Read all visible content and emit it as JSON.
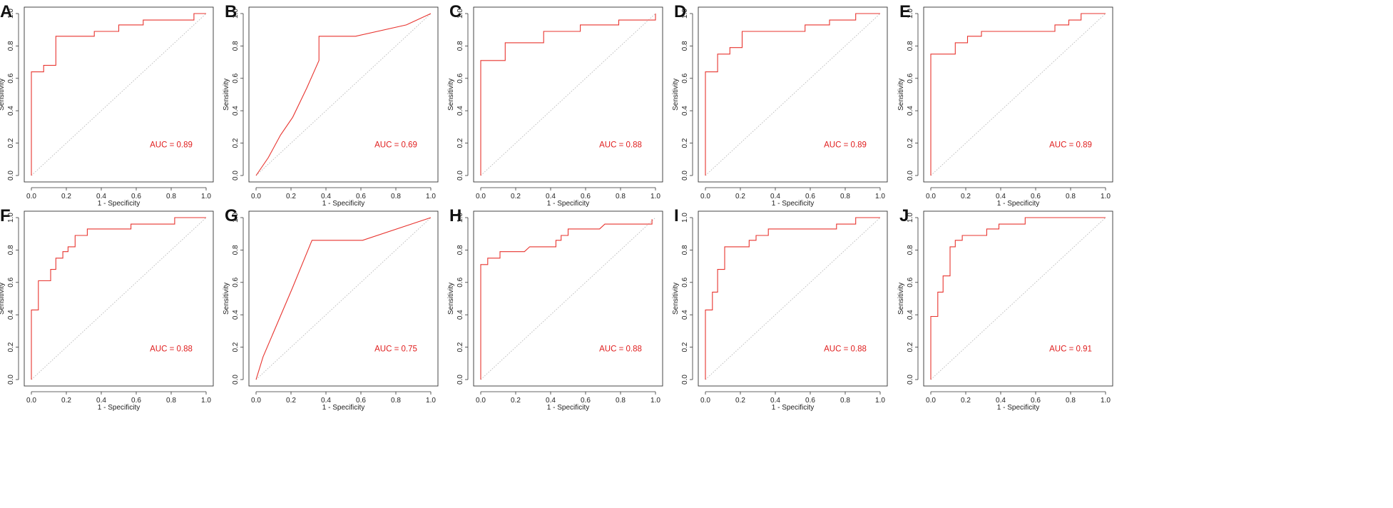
{
  "colors": {
    "roc": "#e8342f",
    "auc_text": "#e01e1e",
    "diagonal": "#b9b9b9",
    "axis": "#333333",
    "frame": "#333333"
  },
  "chart_data": [
    {
      "panel": "A",
      "type": "line",
      "xlabel": "1 - Specificity",
      "ylabel": "Sensitivity",
      "xlim": [
        0,
        1
      ],
      "ylim": [
        0,
        1
      ],
      "ticks": [
        "0.0",
        "0.2",
        "0.4",
        "0.6",
        "0.8",
        "1.0"
      ],
      "auc_label": "AUC = 0.89",
      "x": [
        0,
        0,
        0.07,
        0.07,
        0.14,
        0.14,
        0.36,
        0.36,
        0.5,
        0.5,
        0.64,
        0.64,
        0.93,
        0.93,
        1
      ],
      "y": [
        0,
        0.64,
        0.64,
        0.68,
        0.68,
        0.86,
        0.86,
        0.89,
        0.89,
        0.93,
        0.93,
        0.96,
        0.96,
        1,
        1
      ]
    },
    {
      "panel": "B",
      "type": "line",
      "xlabel": "1 - Specificity",
      "ylabel": "Sensitivity",
      "xlim": [
        0,
        1
      ],
      "ylim": [
        0,
        1
      ],
      "ticks": [
        "0.0",
        "0.2",
        "0.4",
        "0.6",
        "0.8",
        "1.0"
      ],
      "auc_label": "AUC = 0.69",
      "x": [
        0,
        0.07,
        0.14,
        0.21,
        0.29,
        0.36,
        0.36,
        0.57,
        0.86,
        1
      ],
      "y": [
        0,
        0.11,
        0.25,
        0.36,
        0.54,
        0.71,
        0.86,
        0.86,
        0.93,
        1
      ]
    },
    {
      "panel": "C",
      "type": "line",
      "xlabel": "1 - Specificity",
      "ylabel": "Sensitivity",
      "xlim": [
        0,
        1
      ],
      "ylim": [
        0,
        1
      ],
      "ticks": [
        "0.0",
        "0.2",
        "0.4",
        "0.6",
        "0.8",
        "1.0"
      ],
      "auc_label": "AUC = 0.88",
      "x": [
        0,
        0,
        0.14,
        0.14,
        0.36,
        0.36,
        0.57,
        0.57,
        0.79,
        0.79,
        1,
        1
      ],
      "y": [
        0,
        0.71,
        0.71,
        0.82,
        0.82,
        0.89,
        0.89,
        0.93,
        0.93,
        0.96,
        0.96,
        1
      ]
    },
    {
      "panel": "D",
      "type": "line",
      "xlabel": "1 - Specificity",
      "ylabel": "Sensitivity",
      "xlim": [
        0,
        1
      ],
      "ylim": [
        0,
        1
      ],
      "ticks": [
        "0.0",
        "0.2",
        "0.4",
        "0.6",
        "0.8",
        "1.0"
      ],
      "auc_label": "AUC = 0.89",
      "x": [
        0,
        0,
        0.07,
        0.07,
        0.14,
        0.14,
        0.21,
        0.21,
        0.57,
        0.57,
        0.71,
        0.71,
        0.86,
        0.86,
        1
      ],
      "y": [
        0,
        0.64,
        0.64,
        0.75,
        0.75,
        0.79,
        0.79,
        0.89,
        0.89,
        0.93,
        0.93,
        0.96,
        0.96,
        1,
        1
      ]
    },
    {
      "panel": "E",
      "type": "line",
      "xlabel": "1 - Specificity",
      "ylabel": "Sensitivity",
      "xlim": [
        0,
        1
      ],
      "ylim": [
        0,
        1
      ],
      "ticks": [
        "0.0",
        "0.2",
        "0.4",
        "0.6",
        "0.8",
        "1.0"
      ],
      "auc_label": "AUC = 0.89",
      "x": [
        0,
        0,
        0.14,
        0.14,
        0.21,
        0.21,
        0.29,
        0.29,
        0.71,
        0.71,
        0.79,
        0.79,
        0.86,
        0.86,
        1
      ],
      "y": [
        0,
        0.75,
        0.75,
        0.82,
        0.82,
        0.86,
        0.86,
        0.89,
        0.89,
        0.93,
        0.93,
        0.96,
        0.96,
        1,
        1
      ]
    },
    {
      "panel": "F",
      "type": "line",
      "xlabel": "1 - Specificity",
      "ylabel": "Sensitivity",
      "xlim": [
        0,
        1
      ],
      "ylim": [
        0,
        1
      ],
      "ticks": [
        "0.0",
        "0.2",
        "0.4",
        "0.6",
        "0.8",
        "1.0"
      ],
      "auc_label": "AUC = 0.88",
      "x": [
        0,
        0,
        0.04,
        0.04,
        0.11,
        0.11,
        0.14,
        0.14,
        0.18,
        0.18,
        0.21,
        0.21,
        0.25,
        0.25,
        0.32,
        0.32,
        0.57,
        0.57,
        0.82,
        0.82,
        1
      ],
      "y": [
        0,
        0.43,
        0.43,
        0.61,
        0.61,
        0.68,
        0.68,
        0.75,
        0.75,
        0.79,
        0.79,
        0.82,
        0.82,
        0.89,
        0.89,
        0.93,
        0.93,
        0.96,
        0.96,
        1,
        1
      ]
    },
    {
      "panel": "G",
      "type": "line",
      "xlabel": "1 - Specificity",
      "ylabel": "Sensitivity",
      "xlim": [
        0,
        1
      ],
      "ylim": [
        0,
        1
      ],
      "ticks": [
        "0.0",
        "0.2",
        "0.4",
        "0.6",
        "0.8",
        "1.0"
      ],
      "auc_label": "AUC = 0.75",
      "x": [
        0,
        0.04,
        0.21,
        0.32,
        0.61,
        1
      ],
      "y": [
        0,
        0.14,
        0.57,
        0.86,
        0.86,
        1
      ]
    },
    {
      "panel": "H",
      "type": "line",
      "xlabel": "1 - Specificity",
      "ylabel": "Sensitivity",
      "xlim": [
        0,
        1
      ],
      "ylim": [
        0,
        1
      ],
      "ticks": [
        "0.0",
        "0.2",
        "0.4",
        "0.6",
        "0.8",
        "1.0"
      ],
      "auc_label": "AUC = 0.88",
      "x": [
        0,
        0,
        0.04,
        0.04,
        0.11,
        0.11,
        0.25,
        0.28,
        0.43,
        0.43,
        0.46,
        0.46,
        0.5,
        0.5,
        0.68,
        0.71,
        0.98,
        0.98
      ],
      "y": [
        0,
        0.71,
        0.71,
        0.75,
        0.75,
        0.79,
        0.79,
        0.82,
        0.82,
        0.86,
        0.86,
        0.89,
        0.89,
        0.93,
        0.93,
        0.96,
        0.96,
        0.99
      ]
    },
    {
      "panel": "I",
      "type": "line",
      "xlabel": "1 - Specificity",
      "ylabel": "Sensitivity",
      "xlim": [
        0,
        1
      ],
      "ylim": [
        0,
        1
      ],
      "ticks": [
        "0.0",
        "0.2",
        "0.4",
        "0.6",
        "0.8",
        "1.0"
      ],
      "auc_label": "AUC = 0.88",
      "x": [
        0,
        0,
        0.04,
        0.04,
        0.07,
        0.07,
        0.11,
        0.11,
        0.25,
        0.25,
        0.29,
        0.29,
        0.36,
        0.36,
        0.75,
        0.75,
        0.86,
        0.86,
        1
      ],
      "y": [
        0,
        0.43,
        0.43,
        0.54,
        0.54,
        0.68,
        0.68,
        0.82,
        0.82,
        0.86,
        0.86,
        0.89,
        0.89,
        0.93,
        0.93,
        0.96,
        0.96,
        1,
        1
      ]
    },
    {
      "panel": "J",
      "type": "line",
      "xlabel": "1 - Specificity",
      "ylabel": "Sensitivity",
      "xlim": [
        0,
        1
      ],
      "ylim": [
        0,
        1
      ],
      "ticks": [
        "0.0",
        "0.2",
        "0.4",
        "0.6",
        "0.8",
        "1.0"
      ],
      "auc_label": "AUC = 0.91",
      "x": [
        0,
        0,
        0.04,
        0.04,
        0.07,
        0.07,
        0.11,
        0.11,
        0.14,
        0.14,
        0.18,
        0.18,
        0.32,
        0.32,
        0.39,
        0.39,
        0.54,
        0.54,
        1
      ],
      "y": [
        0,
        0.39,
        0.39,
        0.54,
        0.54,
        0.64,
        0.64,
        0.82,
        0.82,
        0.86,
        0.86,
        0.89,
        0.89,
        0.93,
        0.93,
        0.96,
        0.96,
        1,
        1
      ]
    }
  ]
}
